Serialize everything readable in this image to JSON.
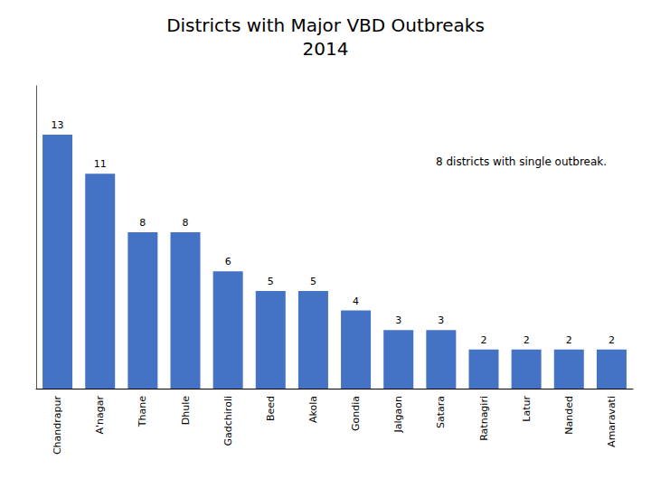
{
  "chart_data": {
    "type": "bar",
    "title": "Districts with Major VBD Outbreaks\n2014",
    "categories": [
      "Chandrapur",
      "A'nagar",
      "Thane",
      "Dhule",
      "Gadchiroli",
      "Beed",
      "Akola",
      "Gondia",
      "Jalgaon",
      "Satara",
      "Ratnagiri",
      "Latur",
      "Nanded",
      "Amaravati"
    ],
    "values": [
      13,
      11,
      8,
      8,
      6,
      5,
      5,
      4,
      3,
      3,
      2,
      2,
      2,
      2
    ],
    "color": "#4472C4",
    "ylim": [
      0,
      15.5
    ],
    "grid": false,
    "data_labels": true,
    "tick_labels": "x",
    "annotation": "8 districts with single outbreak."
  }
}
